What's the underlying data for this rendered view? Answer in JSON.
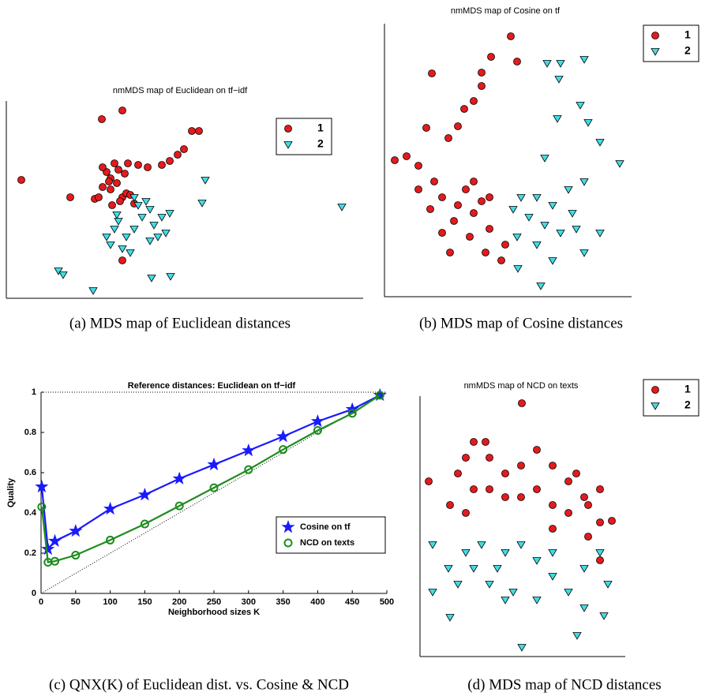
{
  "chart_data": [
    {
      "type": "scatter",
      "title": "nmMDS map of Euclidean on tf−idf",
      "caption": "(a) MDS map of Euclidean distances",
      "xlim": [
        0,
        452
      ],
      "ylim": [
        0,
        250
      ],
      "series": [
        {
          "name": "1",
          "color": "#e41a1c",
          "marker": "circle",
          "x": [
            19,
            121,
            147,
            81,
            235,
            244,
            225,
            217,
            207,
            197,
            179,
            167,
            137,
            142,
            127,
            132,
            122,
            112,
            147,
            152,
            134,
            144,
            157,
            130,
            140,
            150,
            154,
            122,
            117,
            162,
            147,
            132
          ],
          "y": [
            150,
            227,
            238,
            128,
            212,
            212,
            189,
            182,
            174,
            169,
            166,
            169,
            171,
            163,
            160,
            152,
            141,
            126,
            128,
            133,
            118,
            123,
            131,
            148,
            146,
            158,
            171,
            166,
            128,
            120,
            48,
            138
          ]
        },
        {
          "name": "2",
          "color": "#40dce6",
          "marker": "triangle",
          "x": [
            66,
            72,
            110,
            184,
            208,
            248,
            252,
            425,
            127,
            137,
            152,
            162,
            172,
            182,
            167,
            187,
            197,
            207,
            202,
            192,
            147,
            157,
            142,
            177,
            162,
            140,
            132,
            182
          ],
          "y": [
            35,
            30,
            10,
            26,
            28,
            121,
            150,
            116,
            78,
            88,
            78,
            88,
            103,
            113,
            118,
            93,
            103,
            108,
            83,
            78,
            63,
            58,
            98,
            123,
            128,
            106,
            68,
            73
          ]
        }
      ]
    },
    {
      "type": "scatter",
      "title": "nmMDS map of Cosine on tf",
      "caption": "(b) MDS map of Cosine distances",
      "xlim": [
        0,
        313
      ],
      "ylim": [
        0,
        346
      ],
      "series": [
        {
          "name": "1",
          "color": "#e41a1c",
          "marker": "circle",
          "x": [
            160,
            135,
            168,
            60,
            123,
            123,
            113,
            101,
            93,
            53,
            81,
            13,
            28,
            43,
            63,
            73,
            93,
            113,
            123,
            103,
            88,
            73,
            108,
            133,
            128,
            148,
            153,
            113,
            133,
            58,
            43,
            83
          ],
          "y": [
            330,
            304,
            298,
            283,
            284,
            267,
            248,
            238,
            216,
            214,
            201,
            173,
            178,
            166,
            146,
            126,
            116,
            106,
            121,
            136,
            96,
            81,
            76,
            86,
            56,
            46,
            66,
            146,
            126,
            111,
            136,
            56
          ]
        },
        {
          "name": "2",
          "color": "#40dce6",
          "marker": "triangle",
          "x": [
            206,
            223,
            253,
            221,
            248,
            219,
            258,
            273,
            298,
            203,
            173,
            193,
            213,
            233,
            253,
            183,
            203,
            223,
            243,
            273,
            168,
            193,
            213,
            253,
            169,
            198,
            238,
            163
          ],
          "y": [
            296,
            296,
            301,
            276,
            243,
            226,
            221,
            196,
            169,
            176,
            126,
            126,
            116,
            136,
            146,
            101,
            91,
            81,
            86,
            81,
            76,
            66,
            46,
            56,
            36,
            14,
            106,
            111
          ]
        }
      ]
    },
    {
      "type": "line",
      "title": "Reference distances: Euclidean on tf−idf",
      "caption": "(c) QNX(K) of Euclidean dist. vs. Cosine & NCD",
      "xlabel": "Neighborhood sizes K",
      "ylabel": "Quality",
      "xlim": [
        0,
        500
      ],
      "ylim": [
        0,
        1
      ],
      "xticks": [
        0,
        50,
        100,
        150,
        200,
        250,
        300,
        350,
        400,
        450,
        500
      ],
      "yticks": [
        0,
        0.2,
        0.4,
        0.6,
        0.8,
        1
      ],
      "x": [
        1,
        10,
        20,
        50,
        100,
        150,
        200,
        250,
        300,
        350,
        400,
        450,
        490
      ],
      "series": [
        {
          "name": "Cosine on tf",
          "color": "#1a1aff",
          "marker": "star",
          "values": [
            0.53,
            0.22,
            0.26,
            0.31,
            0.42,
            0.49,
            0.57,
            0.64,
            0.71,
            0.78,
            0.855,
            0.915,
            0.985
          ]
        },
        {
          "name": "NCD on texts",
          "color": "#1e8c1e",
          "marker": "circle",
          "values": [
            0.43,
            0.155,
            0.16,
            0.19,
            0.265,
            0.345,
            0.435,
            0.525,
            0.615,
            0.715,
            0.81,
            0.895,
            0.985
          ]
        }
      ]
    },
    {
      "type": "scatter",
      "title": "nmMDS map of NCD on texts",
      "caption": "(d) MDS map of NCD distances",
      "xlim": [
        0,
        260
      ],
      "ylim": [
        0,
        330
      ],
      "series": [
        {
          "name": "1",
          "color": "#e41a1c",
          "marker": "circle",
          "x": [
            129,
            11,
            38,
            58,
            68,
            88,
            108,
            128,
            148,
            168,
            188,
            208,
            228,
            243,
            228,
            213,
            188,
            168,
            148,
            128,
            108,
            88,
            68,
            48,
            58,
            228,
            213,
            168,
            198,
            83
          ],
          "y": [
            321,
            222,
            192,
            252,
            272,
            252,
            232,
            242,
            262,
            242,
            222,
            202,
            212,
            172,
            170,
            192,
            182,
            192,
            212,
            202,
            202,
            212,
            212,
            232,
            182,
            122,
            152,
            162,
            232,
            272
          ]
        },
        {
          "name": "2",
          "color": "#40dce6",
          "marker": "triangle",
          "x": [
            16,
            36,
            38,
            16,
            58,
            78,
            68,
            108,
            88,
            108,
            148,
            168,
            188,
            208,
            238,
            233,
            199,
            129,
            128,
            168,
            208,
            228,
            118,
            148,
            48,
            98
          ],
          "y": [
            142,
            112,
            50,
            82,
            132,
            142,
            112,
            132,
            92,
            72,
            122,
            102,
            82,
            62,
            92,
            52,
            27,
            12,
            142,
            132,
            112,
            132,
            82,
            72,
            92,
            112
          ]
        }
      ]
    }
  ]
}
